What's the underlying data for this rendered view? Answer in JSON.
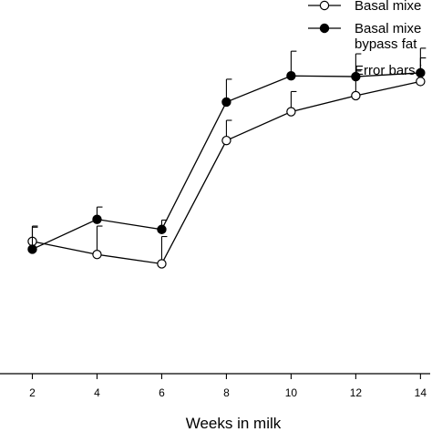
{
  "chart_data": {
    "type": "line",
    "xlabel": "Weeks in milk",
    "ylabel": "",
    "title": "",
    "xlim": [
      1,
      14.3
    ],
    "ylim": [
      0,
      100
    ],
    "x_ticks": [
      2,
      4,
      6,
      8,
      10,
      12,
      14
    ],
    "x": [
      2,
      4,
      6,
      8,
      10,
      12,
      14
    ],
    "grid": false,
    "legend_position": "top-right",
    "series": [
      {
        "name": "Basal mixe",
        "marker": "open-circle",
        "values": [
          35.4,
          31.9,
          29.4,
          62.4,
          70.1,
          74.4,
          78.2
        ],
        "error_up": [
          4.1,
          7.6,
          7.3,
          5.4,
          5.4,
          6.6,
          6.3
        ]
      },
      {
        "name": "Basal mixe",
        "name_line2": "bypass fat",
        "marker": "filled-circle",
        "values": [
          33.3,
          41.3,
          38.6,
          72.7,
          79.7,
          79.5,
          80.5
        ],
        "error_up": [
          5.9,
          3.3,
          2.5,
          6.1,
          6.6,
          6.1,
          6.6
        ]
      }
    ],
    "annotation": "Error bars i"
  }
}
